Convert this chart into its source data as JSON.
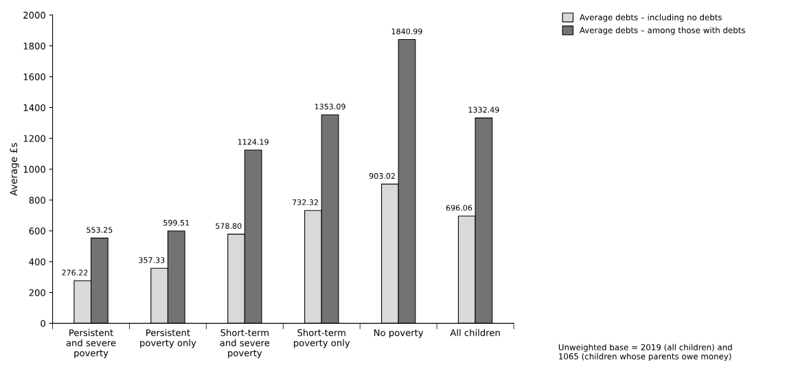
{
  "chart_data": {
    "type": "bar",
    "ylabel": "Average £s",
    "categories": [
      "Persistent\nand severe\npoverty",
      "Persistent\npoverty only",
      "Short-term\nand severe\npoverty",
      "Short-term\npoverty only",
      "No poverty",
      "All children"
    ],
    "series": [
      {
        "name": "Average debts – including no debts",
        "color": "#d9d9d9",
        "values": [
          276.22,
          357.33,
          578.8,
          732.32,
          903.02,
          696.06
        ],
        "value_labels": [
          "276.22",
          "357.33",
          "578.80",
          "732.32",
          "903.02",
          "696.06"
        ]
      },
      {
        "name": "Average debts – among those with debts",
        "color": "#737373",
        "values": [
          553.25,
          599.51,
          1124.19,
          1353.09,
          1840.99,
          1332.49
        ],
        "value_labels": [
          "553.25",
          "599.51",
          "1124.19",
          "1353.09",
          "1840.99",
          "1332.49"
        ]
      }
    ],
    "ylim": [
      0,
      2000
    ],
    "yticks": [
      0,
      200,
      400,
      600,
      800,
      1000,
      1200,
      1400,
      1600,
      1800,
      2000
    ],
    "grid": false,
    "legend": "top right",
    "annotations": [
      "Unweighted base = 2019 (all children) and\n1065 (children whose parents owe money)"
    ]
  }
}
